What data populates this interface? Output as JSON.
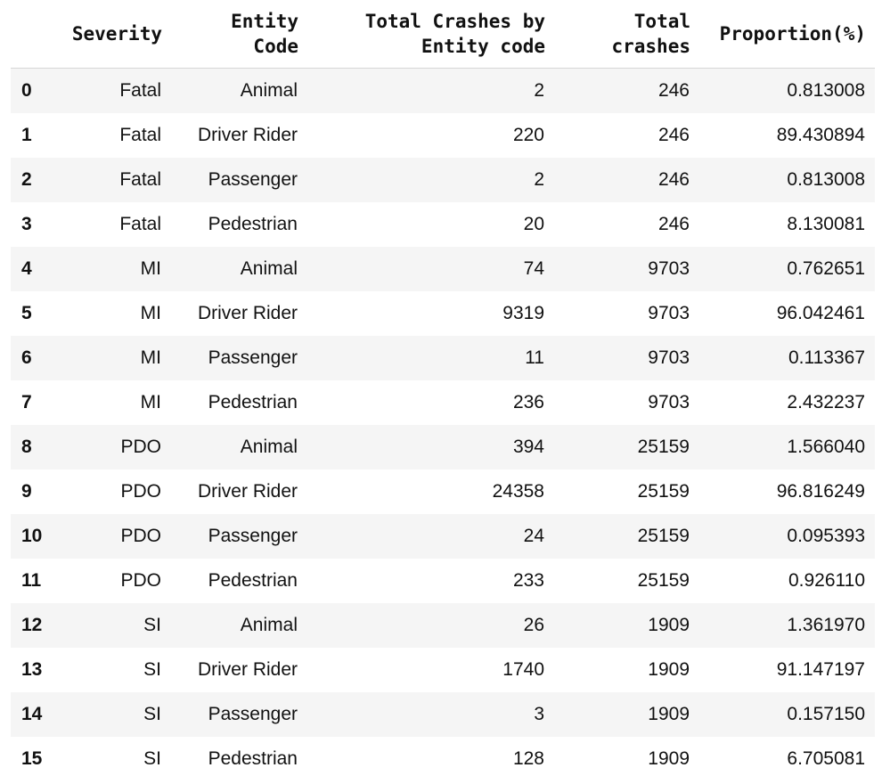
{
  "table": {
    "columns": [
      "",
      "Severity",
      "Entity\nCode",
      "Total Crashes by\nEntity code",
      "Total\ncrashes",
      "Proportion(%)"
    ],
    "rows": [
      [
        "0",
        "Fatal",
        "Animal",
        "2",
        "246",
        "0.813008"
      ],
      [
        "1",
        "Fatal",
        "Driver Rider",
        "220",
        "246",
        "89.430894"
      ],
      [
        "2",
        "Fatal",
        "Passenger",
        "2",
        "246",
        "0.813008"
      ],
      [
        "3",
        "Fatal",
        "Pedestrian",
        "20",
        "246",
        "8.130081"
      ],
      [
        "4",
        "MI",
        "Animal",
        "74",
        "9703",
        "0.762651"
      ],
      [
        "5",
        "MI",
        "Driver Rider",
        "9319",
        "9703",
        "96.042461"
      ],
      [
        "6",
        "MI",
        "Passenger",
        "11",
        "9703",
        "0.113367"
      ],
      [
        "7",
        "MI",
        "Pedestrian",
        "236",
        "9703",
        "2.432237"
      ],
      [
        "8",
        "PDO",
        "Animal",
        "394",
        "25159",
        "1.566040"
      ],
      [
        "9",
        "PDO",
        "Driver Rider",
        "24358",
        "25159",
        "96.816249"
      ],
      [
        "10",
        "PDO",
        "Passenger",
        "24",
        "25159",
        "0.095393"
      ],
      [
        "11",
        "PDO",
        "Pedestrian",
        "233",
        "25159",
        "0.926110"
      ],
      [
        "12",
        "SI",
        "Animal",
        "26",
        "1909",
        "1.361970"
      ],
      [
        "13",
        "SI",
        "Driver Rider",
        "1740",
        "1909",
        "91.147197"
      ],
      [
        "14",
        "SI",
        "Passenger",
        "3",
        "1909",
        "0.157150"
      ],
      [
        "15",
        "SI",
        "Pedestrian",
        "128",
        "1909",
        "6.705081"
      ]
    ]
  }
}
